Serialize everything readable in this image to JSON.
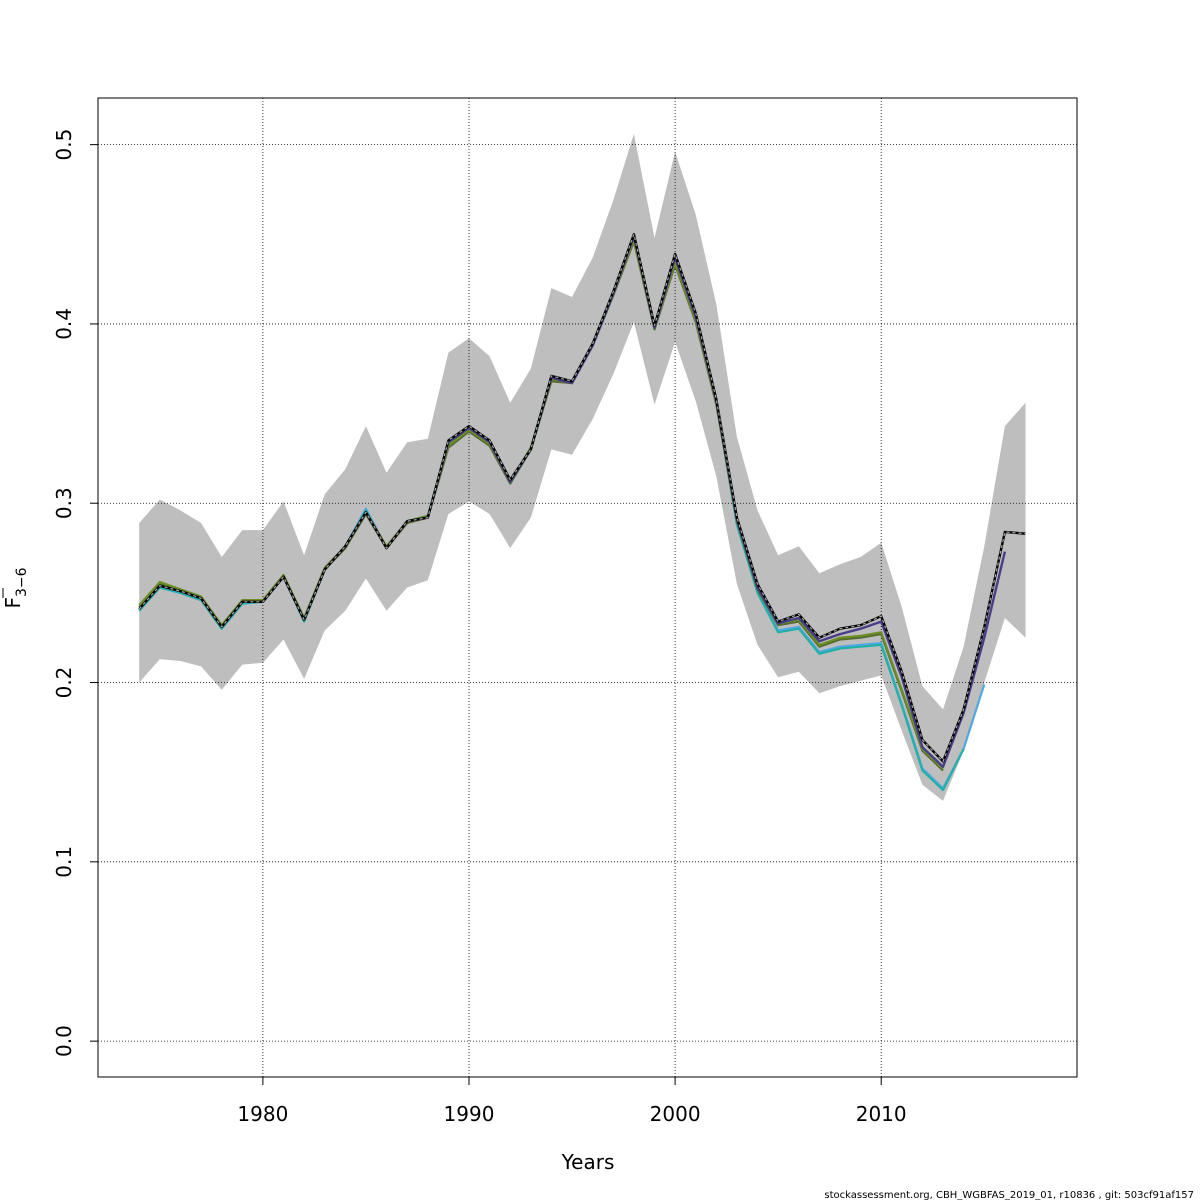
{
  "chart_data": {
    "type": "line",
    "xlabel": "Years",
    "ylabel_main": "F",
    "ylabel_sub": "3−6",
    "xlim": [
      1972,
      2019.5
    ],
    "ylim": [
      -0.02,
      0.526
    ],
    "x_ticks": [
      1980,
      1990,
      2000,
      2010
    ],
    "y_ticks": [
      0.0,
      0.1,
      0.2,
      0.3,
      0.4,
      0.5
    ],
    "y_tick_labels": [
      "0.0",
      "0.1",
      "0.2",
      "0.3",
      "0.4",
      "0.5"
    ],
    "grid": true,
    "confidence_band": {
      "color": "#bebebe",
      "x": [
        1974,
        1975,
        1976,
        1977,
        1978,
        1979,
        1980,
        1981,
        1982,
        1983,
        1984,
        1985,
        1986,
        1987,
        1988,
        1989,
        1990,
        1991,
        1992,
        1993,
        1994,
        1995,
        1996,
        1997,
        1998,
        1999,
        2000,
        2001,
        2002,
        2003,
        2004,
        2005,
        2006,
        2007,
        2008,
        2009,
        2010,
        2011,
        2012,
        2013,
        2014,
        2015,
        2016,
        2017
      ],
      "upper": [
        0.289,
        0.302,
        0.296,
        0.289,
        0.27,
        0.285,
        0.285,
        0.301,
        0.271,
        0.305,
        0.319,
        0.343,
        0.317,
        0.334,
        0.336,
        0.384,
        0.392,
        0.382,
        0.356,
        0.375,
        0.42,
        0.415,
        0.437,
        0.469,
        0.506,
        0.448,
        0.496,
        0.461,
        0.411,
        0.337,
        0.296,
        0.271,
        0.276,
        0.261,
        0.266,
        0.27,
        0.278,
        0.242,
        0.198,
        0.185,
        0.22,
        0.276,
        0.343,
        0.356
      ],
      "lower": [
        0.2,
        0.213,
        0.212,
        0.209,
        0.196,
        0.21,
        0.211,
        0.224,
        0.202,
        0.229,
        0.24,
        0.258,
        0.24,
        0.253,
        0.257,
        0.294,
        0.301,
        0.294,
        0.275,
        0.292,
        0.33,
        0.327,
        0.347,
        0.372,
        0.401,
        0.355,
        0.39,
        0.357,
        0.315,
        0.255,
        0.221,
        0.203,
        0.206,
        0.194,
        0.198,
        0.201,
        0.204,
        0.173,
        0.143,
        0.134,
        0.162,
        0.2,
        0.236,
        0.225
      ]
    },
    "series": [
      {
        "color": "#4fa8e0",
        "width": 2.2,
        "dashed": false,
        "x": [
          1974,
          1975,
          1976,
          1977,
          1978,
          1979,
          1980,
          1981,
          1982,
          1983,
          1984,
          1985,
          1986,
          1987,
          1988,
          1989,
          1990,
          1991,
          1992,
          1993,
          1994,
          1995,
          1996,
          1997,
          1998,
          1999,
          2000,
          2001,
          2002,
          2003,
          2004,
          2005,
          2006,
          2007,
          2008,
          2009,
          2010,
          2011,
          2012,
          2013,
          2014,
          2015
        ],
        "values": [
          0.24,
          0.253,
          0.25,
          0.246,
          0.23,
          0.244,
          0.245,
          0.259,
          0.234,
          0.263,
          0.276,
          0.297,
          0.275,
          0.29,
          0.293,
          0.334,
          0.342,
          0.334,
          0.311,
          0.331,
          0.37,
          0.368,
          0.388,
          0.417,
          0.449,
          0.398,
          0.437,
          0.404,
          0.357,
          0.289,
          0.251,
          0.229,
          0.231,
          0.217,
          0.22,
          0.221,
          0.222,
          0.188,
          0.152,
          0.141,
          0.163,
          0.199
        ]
      },
      {
        "color": "#22b0a8",
        "width": 2.2,
        "dashed": false,
        "x": [
          1974,
          1975,
          1976,
          1977,
          1978,
          1979,
          1980,
          1981,
          1982,
          1983,
          1984,
          1985,
          1986,
          1987,
          1988,
          1989,
          1990,
          1991,
          1992,
          1993,
          1994,
          1995,
          1996,
          1997,
          1998,
          1999,
          2000,
          2001,
          2002,
          2003,
          2004,
          2005,
          2006,
          2007,
          2008,
          2009,
          2010,
          2011,
          2012,
          2013,
          2014
        ],
        "values": [
          0.24,
          0.253,
          0.25,
          0.246,
          0.23,
          0.244,
          0.245,
          0.259,
          0.234,
          0.263,
          0.276,
          0.296,
          0.275,
          0.29,
          0.293,
          0.333,
          0.341,
          0.333,
          0.311,
          0.33,
          0.369,
          0.367,
          0.388,
          0.416,
          0.448,
          0.397,
          0.436,
          0.403,
          0.356,
          0.288,
          0.25,
          0.228,
          0.23,
          0.216,
          0.219,
          0.22,
          0.221,
          0.187,
          0.151,
          0.14,
          0.163
        ]
      },
      {
        "color": "#556b2f",
        "width": 2.2,
        "dashed": false,
        "x": [
          1974,
          1975,
          1976,
          1977,
          1978,
          1979,
          1980,
          1981,
          1982,
          1983,
          1984,
          1985,
          1986,
          1987,
          1988,
          1989,
          1990,
          1991,
          1992,
          1993,
          1994,
          1995,
          1996,
          1997,
          1998,
          1999,
          2000,
          2001,
          2002,
          2003,
          2004,
          2005,
          2006,
          2007,
          2008,
          2009,
          2010,
          2011,
          2012,
          2013
        ],
        "values": [
          0.242,
          0.255,
          0.251,
          0.247,
          0.231,
          0.245,
          0.245,
          0.259,
          0.235,
          0.263,
          0.275,
          0.294,
          0.275,
          0.289,
          0.292,
          0.331,
          0.34,
          0.332,
          0.311,
          0.33,
          0.368,
          0.367,
          0.388,
          0.416,
          0.446,
          0.397,
          0.433,
          0.401,
          0.355,
          0.29,
          0.252,
          0.232,
          0.234,
          0.22,
          0.224,
          0.225,
          0.227,
          0.195,
          0.162,
          0.151
        ]
      },
      {
        "color": "#6b8e23",
        "width": 2.2,
        "dashed": false,
        "x": [
          1974,
          1975,
          1976,
          1977,
          1978,
          1979,
          1980,
          1981,
          1982,
          1983,
          1984,
          1985,
          1986,
          1987,
          1988,
          1989,
          1990,
          1991,
          1992,
          1993,
          1994,
          1995,
          1996,
          1997,
          1998,
          1999,
          2000,
          2001,
          2002,
          2003,
          2004,
          2005,
          2006,
          2007,
          2008,
          2009,
          2010,
          2011,
          2012,
          2013
        ],
        "values": [
          0.243,
          0.256,
          0.252,
          0.248,
          0.232,
          0.246,
          0.246,
          0.26,
          0.236,
          0.264,
          0.276,
          0.295,
          0.276,
          0.29,
          0.293,
          0.332,
          0.341,
          0.333,
          0.312,
          0.331,
          0.369,
          0.368,
          0.389,
          0.417,
          0.447,
          0.398,
          0.434,
          0.402,
          0.356,
          0.291,
          0.253,
          0.233,
          0.235,
          0.221,
          0.225,
          0.226,
          0.228,
          0.196,
          0.163,
          0.152
        ]
      },
      {
        "color": "#483d8b",
        "width": 2.4,
        "dashed": false,
        "x": [
          1974,
          1975,
          1976,
          1977,
          1978,
          1979,
          1980,
          1981,
          1982,
          1983,
          1984,
          1985,
          1986,
          1987,
          1988,
          1989,
          1990,
          1991,
          1992,
          1993,
          1994,
          1995,
          1996,
          1997,
          1998,
          1999,
          2000,
          2001,
          2002,
          2003,
          2004,
          2005,
          2006,
          2007,
          2008,
          2009,
          2010,
          2011,
          2012,
          2013,
          2014,
          2015,
          2016
        ],
        "values": [
          0.241,
          0.254,
          0.251,
          0.247,
          0.231,
          0.245,
          0.245,
          0.259,
          0.235,
          0.263,
          0.276,
          0.295,
          0.275,
          0.29,
          0.292,
          0.334,
          0.342,
          0.334,
          0.312,
          0.33,
          0.37,
          0.367,
          0.388,
          0.417,
          0.449,
          0.398,
          0.437,
          0.404,
          0.357,
          0.291,
          0.253,
          0.233,
          0.236,
          0.223,
          0.227,
          0.23,
          0.234,
          0.203,
          0.164,
          0.153,
          0.183,
          0.225,
          0.273
        ]
      },
      {
        "color": "#000000",
        "width": 2.4,
        "dashed": false,
        "x": [
          1974,
          1975,
          1976,
          1977,
          1978,
          1979,
          1980,
          1981,
          1982,
          1983,
          1984,
          1985,
          1986,
          1987,
          1988,
          1989,
          1990,
          1991,
          1992,
          1993,
          1994,
          1995,
          1996,
          1997,
          1998,
          1999,
          2000,
          2001,
          2002,
          2003,
          2004,
          2005,
          2006,
          2007,
          2008,
          2009,
          2010,
          2011,
          2012,
          2013,
          2014,
          2015,
          2016,
          2017
        ],
        "values": [
          0.241,
          0.254,
          0.251,
          0.247,
          0.231,
          0.245,
          0.245,
          0.259,
          0.235,
          0.263,
          0.276,
          0.295,
          0.275,
          0.29,
          0.292,
          0.335,
          0.343,
          0.335,
          0.313,
          0.33,
          0.371,
          0.368,
          0.389,
          0.418,
          0.45,
          0.399,
          0.439,
          0.406,
          0.358,
          0.292,
          0.255,
          0.234,
          0.238,
          0.225,
          0.23,
          0.232,
          0.237,
          0.206,
          0.168,
          0.156,
          0.185,
          0.231,
          0.284,
          0.283
        ]
      },
      {
        "color": "#aaaaaa",
        "width": 1.2,
        "dashed": true,
        "x": [
          1974,
          1975,
          1976,
          1977,
          1978,
          1979,
          1980,
          1981,
          1982,
          1983,
          1984,
          1985,
          1986,
          1987,
          1988,
          1989,
          1990,
          1991,
          1992,
          1993,
          1994,
          1995,
          1996,
          1997,
          1998,
          1999,
          2000,
          2001,
          2002,
          2003,
          2004,
          2005,
          2006,
          2007,
          2008,
          2009,
          2010,
          2011,
          2012,
          2013,
          2014,
          2015,
          2016,
          2017
        ],
        "values": [
          0.241,
          0.254,
          0.251,
          0.247,
          0.231,
          0.245,
          0.245,
          0.259,
          0.235,
          0.263,
          0.276,
          0.295,
          0.275,
          0.29,
          0.292,
          0.335,
          0.343,
          0.335,
          0.313,
          0.33,
          0.371,
          0.368,
          0.389,
          0.418,
          0.45,
          0.399,
          0.439,
          0.406,
          0.358,
          0.292,
          0.255,
          0.234,
          0.238,
          0.225,
          0.23,
          0.232,
          0.237,
          0.206,
          0.168,
          0.156,
          0.185,
          0.231,
          0.284,
          0.283
        ]
      }
    ]
  },
  "footer_text": "stockassessment.org, CBH_WGBFAS_2019_01, r10836 , git: 503cf91af157"
}
